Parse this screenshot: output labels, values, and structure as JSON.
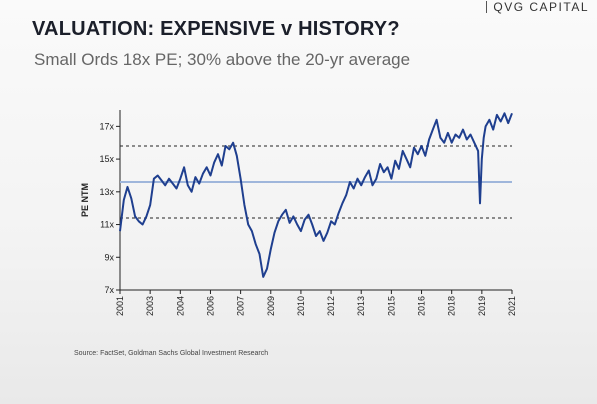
{
  "brand": {
    "name": "QVG CAPITAL"
  },
  "header": {
    "title": "VALUATION: EXPENSIVE v HISTORY?",
    "subtitle": "Small Ords 18x PE; 30% above the 20-yr average"
  },
  "footer": {
    "source": "Source: FactSet, Goldman Sachs Global Investment Research"
  },
  "colors": {
    "series": "#1f3f8f",
    "average_line": "#9fb6db",
    "band_lines": "#222222"
  },
  "chart_data": {
    "type": "line",
    "title": "",
    "xlabel": "",
    "ylabel": "PE NTM",
    "xlim": [
      2001.0,
      2021.8
    ],
    "ylim": [
      7,
      18
    ],
    "x_ticks": [
      "2001",
      "2003",
      "2004",
      "2006",
      "2007",
      "2009",
      "2010",
      "2012",
      "2013",
      "2015",
      "2016",
      "2018",
      "2019",
      "2021"
    ],
    "x_tick_values": [
      2001.0,
      2002.6,
      2004.2,
      2005.8,
      2007.4,
      2009.0,
      2010.6,
      2012.2,
      2013.8,
      2015.4,
      2017.0,
      2018.6,
      2020.2,
      2021.8
    ],
    "y_ticks": [
      "7x",
      "9x",
      "11x",
      "13x",
      "15x",
      "17x"
    ],
    "y_tick_values": [
      7,
      9,
      11,
      13,
      15,
      17
    ],
    "reference_lines": [
      {
        "kind": "average",
        "y": 13.6
      },
      {
        "kind": "plus-one-std",
        "y": 15.8
      },
      {
        "kind": "minus-one-std",
        "y": 11.4
      }
    ],
    "series": [
      {
        "x": [
          2001.0,
          2001.2,
          2001.4,
          2001.6,
          2001.8,
          2002.0,
          2002.2,
          2002.4,
          2002.6,
          2002.8,
          2003.0,
          2003.2,
          2003.4,
          2003.6,
          2003.8,
          2004.0,
          2004.2,
          2004.4,
          2004.6,
          2004.8,
          2005.0,
          2005.2,
          2005.4,
          2005.6,
          2005.8,
          2006.0,
          2006.2,
          2006.4,
          2006.6,
          2006.8,
          2007.0,
          2007.2,
          2007.4,
          2007.6,
          2007.8,
          2008.0,
          2008.2,
          2008.4,
          2008.6,
          2008.8,
          2009.0,
          2009.2,
          2009.4,
          2009.6,
          2009.8,
          2010.0,
          2010.2,
          2010.4,
          2010.6,
          2010.8,
          2011.0,
          2011.2,
          2011.4,
          2011.6,
          2011.8,
          2012.0,
          2012.2,
          2012.4,
          2012.6,
          2012.8,
          2013.0,
          2013.2,
          2013.4,
          2013.6,
          2013.8,
          2014.0,
          2014.2,
          2014.4,
          2014.6,
          2014.8,
          2015.0,
          2015.2,
          2015.4,
          2015.6,
          2015.8,
          2016.0,
          2016.2,
          2016.4,
          2016.6,
          2016.8,
          2017.0,
          2017.2,
          2017.4,
          2017.6,
          2017.8,
          2018.0,
          2018.2,
          2018.4,
          2018.6,
          2018.8,
          2019.0,
          2019.2,
          2019.4,
          2019.6,
          2019.8,
          2020.0,
          2020.1,
          2020.2,
          2020.3,
          2020.4,
          2020.6,
          2020.8,
          2021.0,
          2021.2,
          2021.4,
          2021.6,
          2021.8
        ],
        "values": [
          10.6,
          12.5,
          13.3,
          12.6,
          11.5,
          11.2,
          11.0,
          11.5,
          12.2,
          13.8,
          14.0,
          13.7,
          13.4,
          13.8,
          13.5,
          13.2,
          13.8,
          14.5,
          13.4,
          13.0,
          13.9,
          13.5,
          14.1,
          14.5,
          14.0,
          14.8,
          15.3,
          14.6,
          15.8,
          15.6,
          16.0,
          15.2,
          13.8,
          12.2,
          11.0,
          10.6,
          9.8,
          9.2,
          7.8,
          8.3,
          9.5,
          10.5,
          11.2,
          11.6,
          11.9,
          11.1,
          11.5,
          11.0,
          10.6,
          11.3,
          11.6,
          11.0,
          10.3,
          10.6,
          10.0,
          10.5,
          11.2,
          11.0,
          11.7,
          12.3,
          12.8,
          13.6,
          13.2,
          13.8,
          13.4,
          13.9,
          14.3,
          13.4,
          13.8,
          14.7,
          14.2,
          14.5,
          13.8,
          14.9,
          14.4,
          15.5,
          15.0,
          14.5,
          15.7,
          15.3,
          15.8,
          15.2,
          16.2,
          16.8,
          17.4,
          16.3,
          16.0,
          16.6,
          16.0,
          16.5,
          16.3,
          16.8,
          16.2,
          16.5,
          16.0,
          15.5,
          12.3,
          15.0,
          16.3,
          17.0,
          17.4,
          16.8,
          17.7,
          17.3,
          17.8,
          17.2,
          17.8
        ]
      }
    ],
    "grid": false,
    "legend": "none"
  }
}
